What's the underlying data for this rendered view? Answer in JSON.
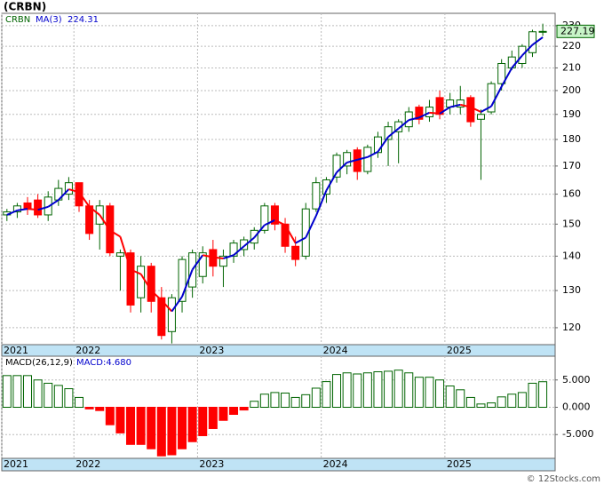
{
  "chart_data": [
    {
      "type": "candlestick",
      "title": "(CRBN)",
      "symbol": "CRBN",
      "open": [
        153,
        154,
        157,
        158,
        153,
        158,
        160,
        164,
        156,
        150,
        156,
        140,
        141,
        128,
        137,
        128,
        119,
        127,
        131,
        134,
        142,
        137,
        140,
        142,
        144,
        148,
        156,
        150,
        143,
        140,
        155,
        160,
        166,
        170,
        176,
        168,
        175,
        180,
        183,
        185,
        193,
        189,
        197,
        193,
        193,
        197,
        188,
        191,
        203,
        210,
        212,
        217,
        227
      ],
      "high": [
        155,
        157,
        159,
        160,
        161,
        165,
        166,
        164,
        158,
        158,
        157,
        142,
        142,
        140,
        138,
        131,
        129,
        140,
        142,
        143,
        145,
        142,
        145,
        146,
        149,
        157,
        157,
        152,
        146,
        157,
        166,
        166,
        175,
        176,
        177,
        178,
        183,
        187,
        188,
        193,
        194,
        196,
        200,
        199,
        202,
        198,
        192,
        204,
        214,
        218,
        221,
        228,
        231
      ],
      "low": [
        151,
        152,
        153,
        152,
        151,
        156,
        158,
        154,
        145,
        142,
        140,
        130,
        124,
        124,
        124,
        117,
        116,
        124,
        128,
        132,
        134,
        131,
        138,
        140,
        142,
        147,
        148,
        141,
        137,
        139,
        154,
        157,
        164,
        167,
        165,
        167,
        173,
        170,
        171,
        183,
        186,
        187,
        188,
        190,
        190,
        185,
        165,
        190,
        200,
        209,
        210,
        215,
        225
      ],
      "close": [
        154,
        156,
        155,
        153,
        159,
        162,
        164,
        156,
        147,
        156,
        141,
        141,
        126,
        137,
        127,
        118,
        128,
        139,
        141,
        141,
        137,
        140,
        144,
        145,
        148,
        156,
        150,
        143,
        139,
        155,
        164,
        165,
        174,
        175,
        168,
        177,
        181,
        185,
        187,
        191,
        188,
        193,
        190,
        196,
        196,
        187,
        190,
        203,
        212,
        215,
        220,
        227,
        227.19
      ],
      "up_color": "#006400",
      "down_color": "#ff0000",
      "ma": {
        "name": "MA(3)",
        "color_up": "#0000cc",
        "color_down": "#ff0000",
        "values": [
          153,
          154.5,
          155,
          154.7,
          155.7,
          158,
          161.7,
          160.7,
          155.7,
          153,
          148,
          146,
          136,
          134.7,
          130,
          127.3,
          124.3,
          128.3,
          136,
          140.3,
          139.7,
          139.3,
          140.3,
          143,
          145.7,
          149.7,
          151.3,
          149.7,
          144,
          145.7,
          152.7,
          161.3,
          167.7,
          171.3,
          172.3,
          173.3,
          175.3,
          181,
          184.3,
          187.7,
          188.7,
          190.7,
          190.3,
          193,
          194,
          193,
          191,
          193.3,
          201.7,
          210,
          215.7,
          220.7,
          224.31
        ]
      },
      "log_scale": true,
      "grid": true,
      "ylim": [
        115.7,
        236.2
      ],
      "yticks": [
        120,
        130,
        140,
        150,
        160,
        170,
        180,
        190,
        200,
        210,
        220,
        230
      ],
      "xlim": [
        -0.5,
        53.2
      ],
      "xticks": [
        {
          "value": -0.5,
          "label": "2021"
        },
        {
          "value": 6.5,
          "label": "2022"
        },
        {
          "value": 18.5,
          "label": "2023"
        },
        {
          "value": 30.5,
          "label": "2024"
        },
        {
          "value": 42.5,
          "label": "2025"
        }
      ]
    },
    {
      "type": "bar",
      "name": "MACD(26,12,9)",
      "value_label": "MACD:4.680",
      "values": [
        5.8,
        5.8,
        5.8,
        5.0,
        4.4,
        4.0,
        3.4,
        1.8,
        -0.3,
        -0.6,
        -3.2,
        -4.7,
        -6.8,
        -6.8,
        -7.6,
        -8.9,
        -8.7,
        -7.6,
        -6.3,
        -5.2,
        -3.9,
        -2.4,
        -1.3,
        -0.5,
        1.1,
        2.4,
        2.7,
        2.6,
        1.8,
        2.3,
        3.5,
        4.7,
        6.0,
        6.3,
        6.1,
        6.3,
        6.5,
        6.6,
        6.8,
        6.3,
        5.5,
        5.5,
        5.0,
        3.9,
        3.2,
        1.8,
        0.6,
        0.8,
        1.9,
        2.4,
        2.7,
        4.4,
        4.68
      ],
      "up_color": "#006400",
      "down_color": "#ff0000",
      "grid": true,
      "ylim": [
        -9.35,
        9.35
      ],
      "yticks": [
        {
          "value": -5,
          "label": "-5.000"
        },
        {
          "value": 0,
          "label": "0.000"
        },
        {
          "value": 5,
          "label": "5.000"
        }
      ],
      "xlim": [
        -0.5,
        53.2
      ],
      "xticks": [
        {
          "value": -0.5,
          "label": "2021"
        },
        {
          "value": 6.5,
          "label": "2022"
        },
        {
          "value": 18.5,
          "label": "2023"
        },
        {
          "value": 30.5,
          "label": "2024"
        },
        {
          "value": 42.5,
          "label": "2025"
        }
      ]
    }
  ],
  "footer": "© 12Stocks.com"
}
